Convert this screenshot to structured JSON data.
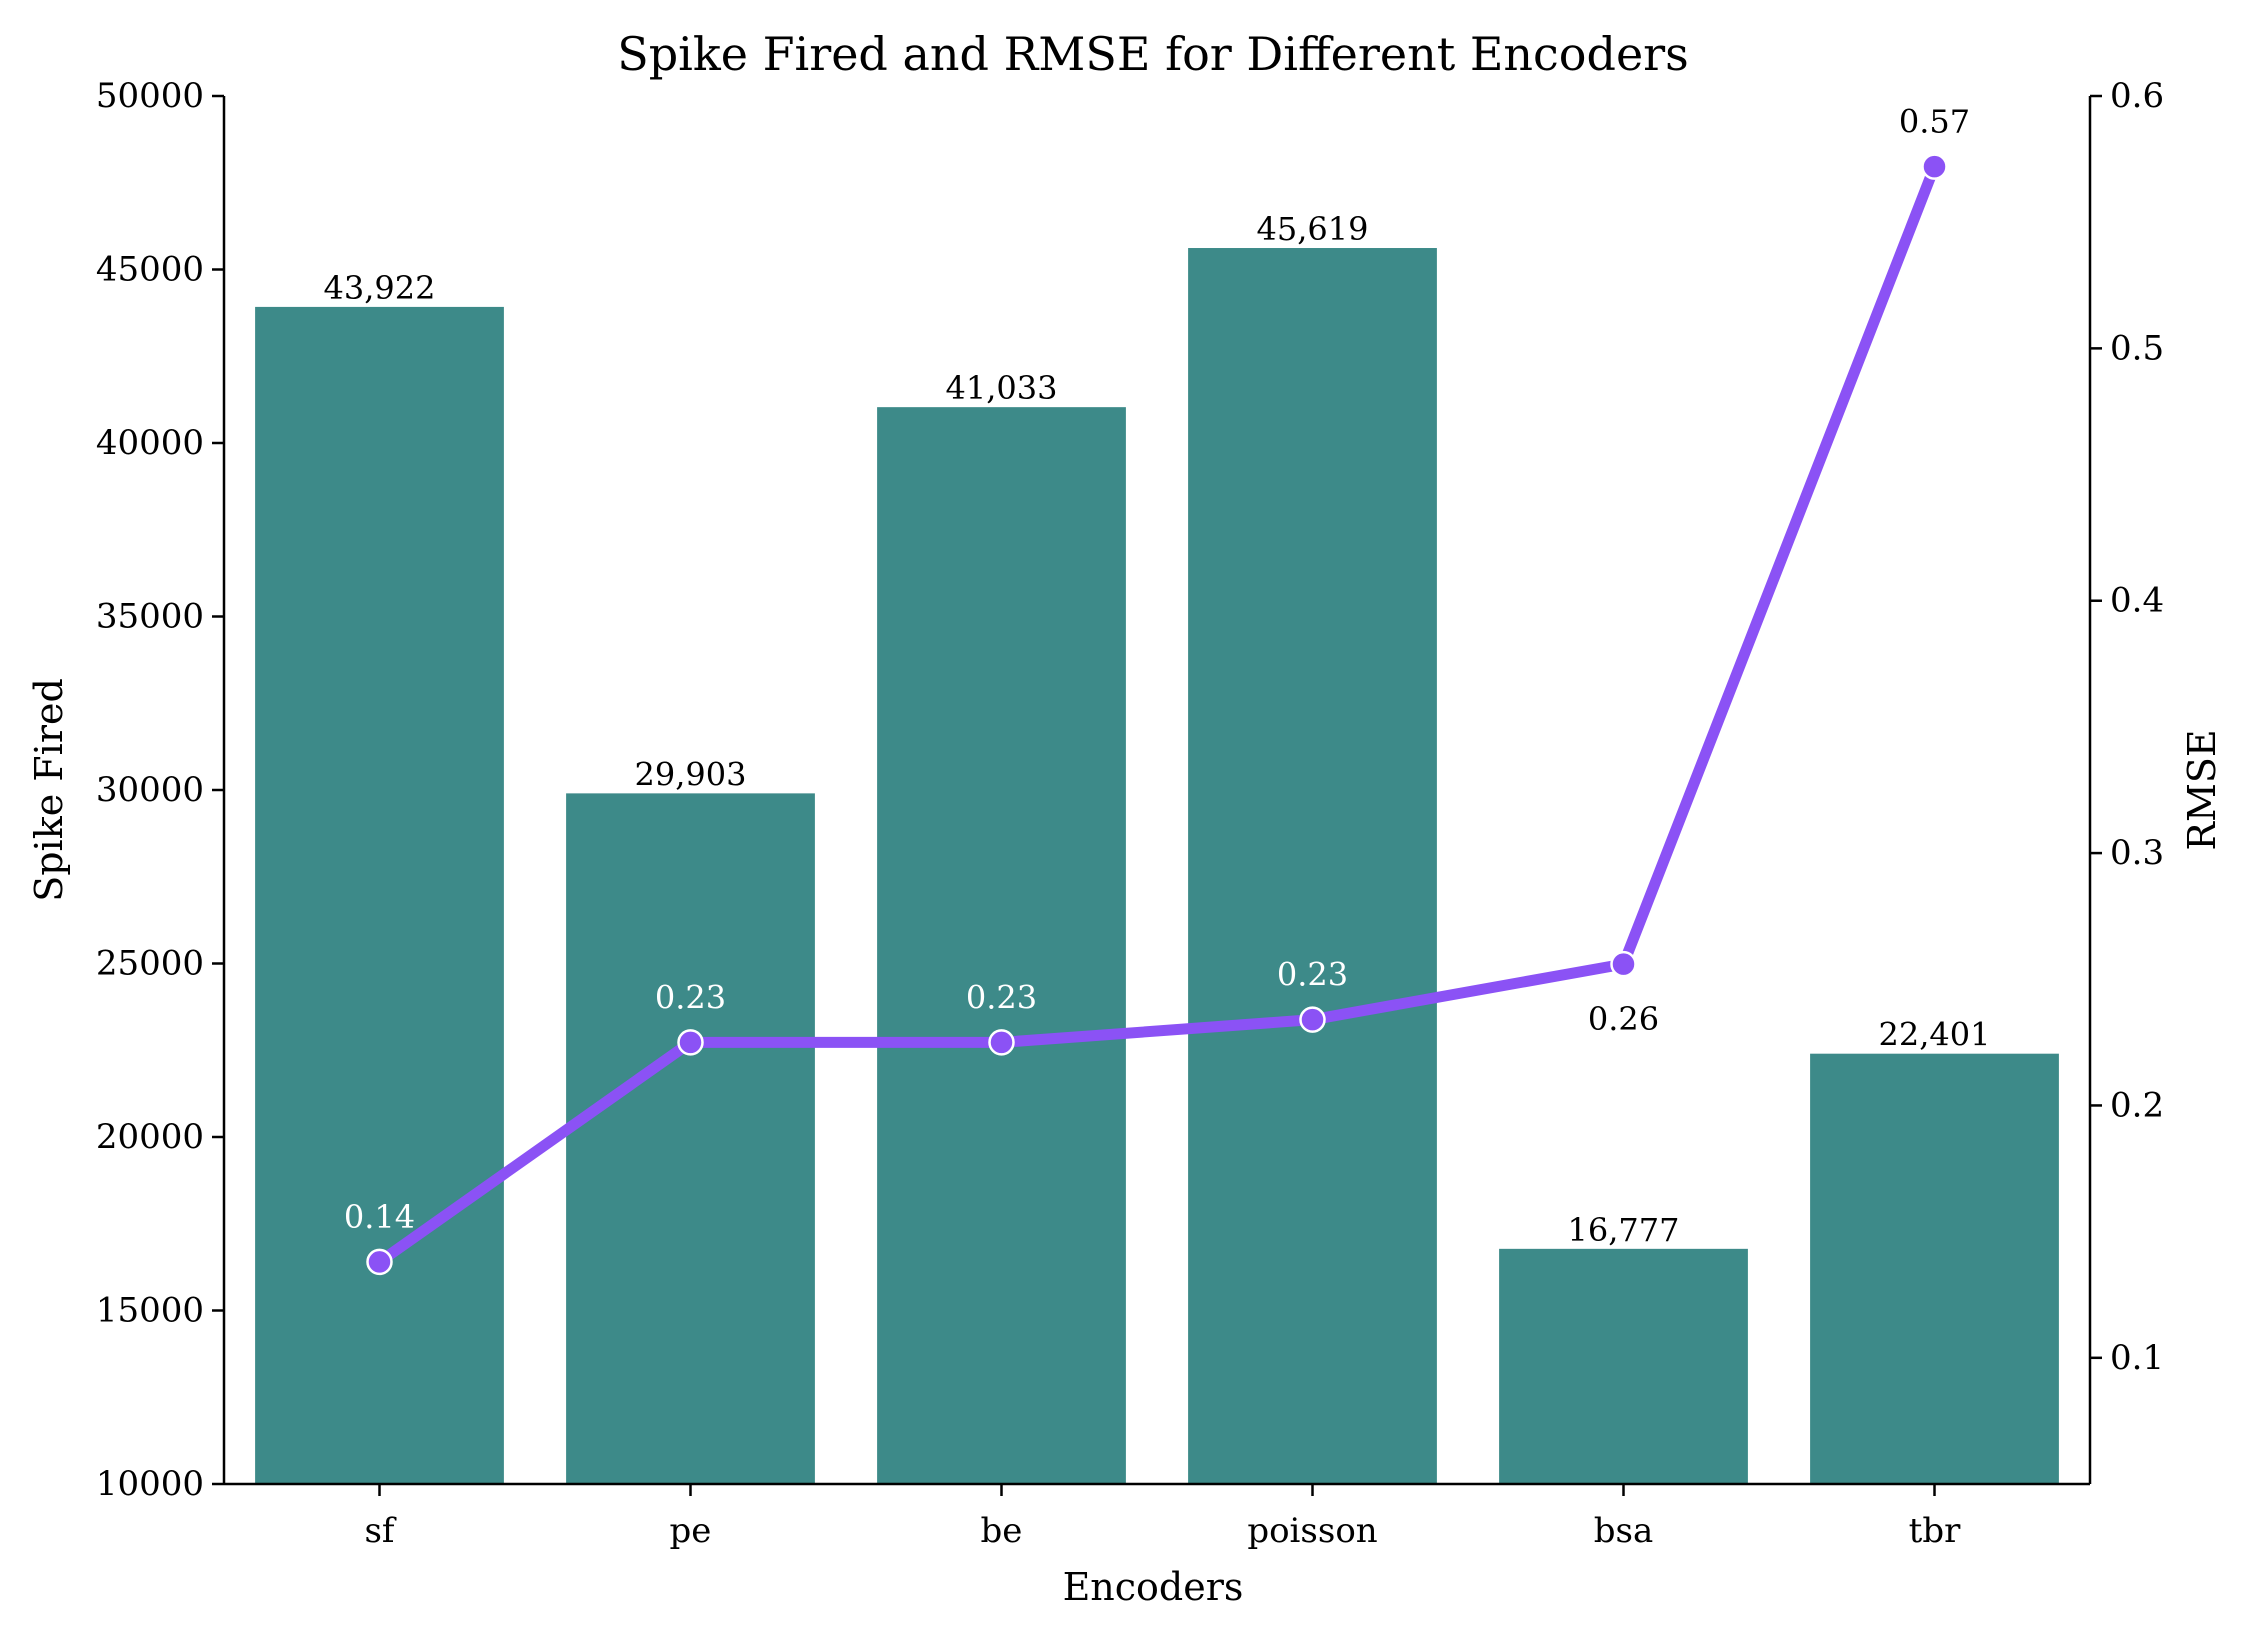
{
  "chart_data": {
    "type": "bar",
    "title": "Spike Fired and RMSE for Different Encoders",
    "xlabel": "Encoders",
    "ylabel": "Spike Fired",
    "y2label": "RMSE",
    "categories": [
      "sf",
      "pe",
      "be",
      "poisson",
      "bsa",
      "tbr"
    ],
    "ylim": [
      10000,
      50000
    ],
    "yticks": [
      "10000",
      "15000",
      "20000",
      "25000",
      "30000",
      "35000",
      "40000",
      "45000",
      "50000"
    ],
    "y2lim": [
      0.05,
      0.6
    ],
    "y2ticks": [
      "0.1",
      "0.2",
      "0.3",
      "0.4",
      "0.5",
      "0.6"
    ],
    "grid": false,
    "series": [
      {
        "type": "bar",
        "axis": "left",
        "values": [
          43922,
          29903,
          41033,
          45619,
          16777,
          22401
        ],
        "labels": [
          "43,922",
          "29,903",
          "41,033",
          "45,619",
          "16,777",
          "22,401"
        ],
        "color": "#3d8a89"
      },
      {
        "type": "line",
        "axis": "right",
        "values": [
          0.138,
          0.225,
          0.225,
          0.234,
          0.256,
          0.572
        ],
        "labels": [
          "0.14",
          "0.23",
          "0.23",
          "0.23",
          "0.26",
          "0.57"
        ],
        "label_colors": [
          "#ffffff",
          "#ffffff",
          "#ffffff",
          "#ffffff",
          "#000000",
          "#000000"
        ],
        "color": "#8b52f5"
      }
    ]
  }
}
